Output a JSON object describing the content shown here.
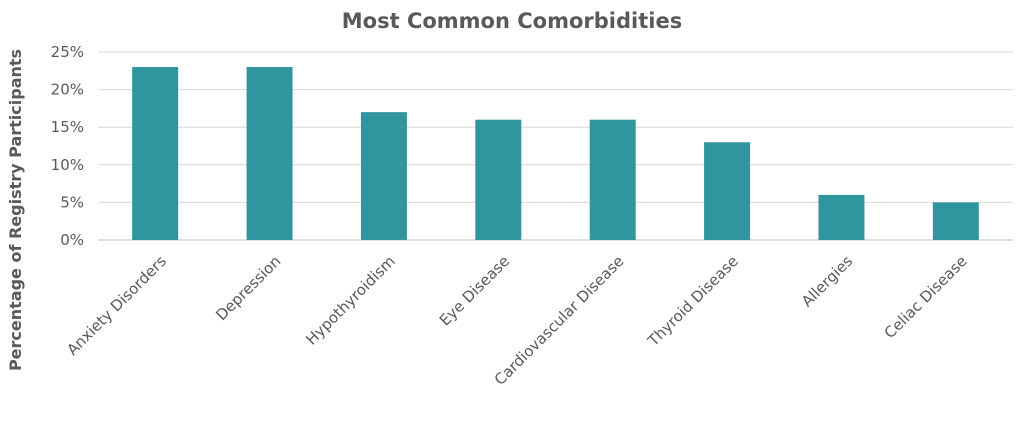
{
  "chart_data": {
    "type": "bar",
    "title": "Most Common Comorbidities",
    "xlabel": "",
    "ylabel": "Percentage of Registry Participants",
    "categories": [
      "Anxiety Disorders",
      "Depression",
      "Hypothyroidism",
      "Eye Disease",
      "Cardiovascular Disease",
      "Thyroid Disease",
      "Allergies",
      "Celiac Disease"
    ],
    "values": [
      23,
      23,
      17,
      16,
      16,
      13,
      6,
      5
    ],
    "ylim": [
      0,
      25
    ],
    "yticks": [
      0,
      5,
      10,
      15,
      20,
      25
    ],
    "ytick_labels": [
      "0%",
      "5%",
      "10%",
      "15%",
      "20%",
      "25%"
    ],
    "grid": true,
    "legend": "none",
    "colors": {
      "bar": "#2f969f",
      "grid": "#d9d9d9",
      "text": "#595959"
    }
  }
}
